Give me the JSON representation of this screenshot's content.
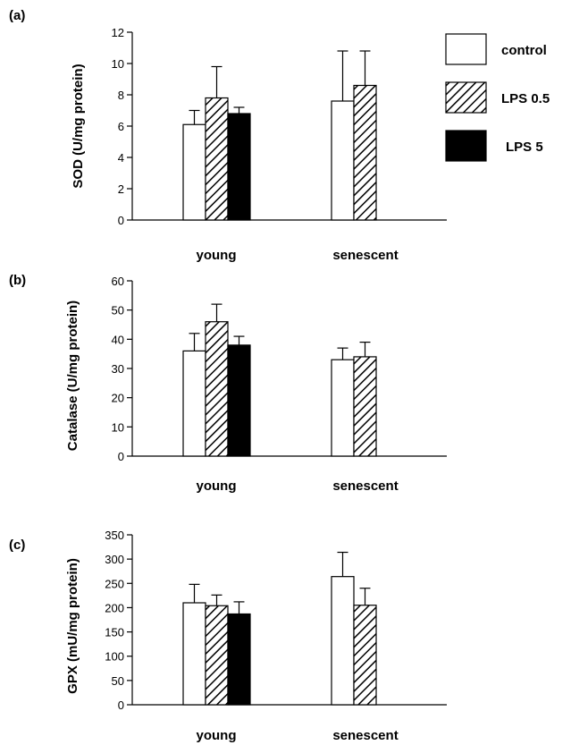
{
  "legend": {
    "entries": [
      {
        "label": "control",
        "style": "open"
      },
      {
        "label": "LPS 0.5",
        "style": "hatched"
      },
      {
        "label": "LPS 5",
        "style": "solid"
      }
    ]
  },
  "chart_data": [
    {
      "type": "bar",
      "panel": "(a)",
      "ylabel": "SOD (U/mg protein)",
      "xlabel": "",
      "ylim": [
        0,
        12
      ],
      "yticks": [
        0,
        2,
        4,
        6,
        8,
        10,
        12
      ],
      "categories": [
        "young",
        "senescent"
      ],
      "series": [
        {
          "name": "control",
          "style": "open",
          "values": [
            6.1,
            7.6
          ],
          "errors": [
            0.9,
            3.2
          ]
        },
        {
          "name": "LPS 0.5",
          "style": "hatched",
          "values": [
            7.8,
            8.6
          ],
          "errors": [
            2.0,
            2.2
          ]
        },
        {
          "name": "LPS 5",
          "style": "solid",
          "values": [
            6.8,
            null
          ],
          "errors": [
            0.4,
            null
          ]
        }
      ]
    },
    {
      "type": "bar",
      "panel": "(b)",
      "ylabel": "Catalase (U/mg protein)",
      "xlabel": "",
      "ylim": [
        0,
        60
      ],
      "yticks": [
        0,
        10,
        20,
        30,
        40,
        50,
        60
      ],
      "categories": [
        "young",
        "senescent"
      ],
      "series": [
        {
          "name": "control",
          "style": "open",
          "values": [
            36,
            33
          ],
          "errors": [
            6,
            4
          ]
        },
        {
          "name": "LPS 0.5",
          "style": "hatched",
          "values": [
            46,
            34
          ],
          "errors": [
            6,
            5
          ]
        },
        {
          "name": "LPS 5",
          "style": "solid",
          "values": [
            38,
            null
          ],
          "errors": [
            3,
            null
          ]
        }
      ]
    },
    {
      "type": "bar",
      "panel": "(c)",
      "ylabel": "GPX (mU/mg protein)",
      "xlabel": "",
      "ylim": [
        0,
        350
      ],
      "yticks": [
        0,
        50,
        100,
        150,
        200,
        250,
        300,
        350
      ],
      "categories": [
        "young",
        "senescent"
      ],
      "series": [
        {
          "name": "control",
          "style": "open",
          "values": [
            210,
            264
          ],
          "errors": [
            38,
            50
          ]
        },
        {
          "name": "LPS 0.5",
          "style": "hatched",
          "values": [
            204,
            205
          ],
          "errors": [
            22,
            35
          ]
        },
        {
          "name": "LPS 5",
          "style": "solid",
          "values": [
            187,
            null
          ],
          "errors": [
            25,
            null
          ]
        }
      ]
    }
  ]
}
